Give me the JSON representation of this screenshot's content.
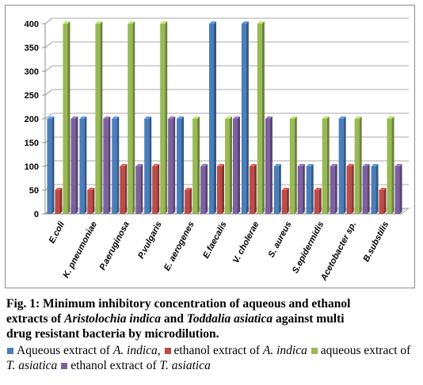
{
  "chart_data": {
    "type": "bar",
    "categories": [
      "E.coli",
      "K. pneumoniae",
      "P.aeruginosa",
      "P.vulgaris",
      "E. aerogenes",
      "E.faecalis",
      "V. cholerae",
      "S. aureus",
      "S.epidermidis",
      "Acetobacter sp.",
      "B.substilis"
    ],
    "series": [
      {
        "name": "Aqueous extract of A. indica",
        "color": "#4a7ebb",
        "values": [
          200,
          200,
          200,
          200,
          200,
          400,
          400,
          100,
          100,
          200,
          100
        ]
      },
      {
        "name": "ethanol extract of A. indica",
        "color": "#be4b48",
        "values": [
          50,
          50,
          100,
          100,
          50,
          100,
          100,
          50,
          50,
          100,
          50
        ]
      },
      {
        "name": "aqueous extract of T. asiatica",
        "color": "#98b954",
        "values": [
          400,
          400,
          400,
          400,
          200,
          200,
          400,
          200,
          200,
          200,
          200
        ]
      },
      {
        "name": "ethanol extract of T. asiatica",
        "color": "#7d60a0",
        "values": [
          200,
          200,
          100,
          200,
          100,
          200,
          200,
          100,
          100,
          100,
          100
        ]
      }
    ],
    "yticks": [
      "0",
      "50",
      "100",
      "150",
      "200",
      "250",
      "300",
      "350",
      "400"
    ],
    "ylim": [
      0,
      400
    ],
    "grid": true,
    "chart_style": "3d-clustered-column",
    "legend_position": "bottom"
  },
  "caption": {
    "line1_bold": "Fig. 1: Minimum inhibitory concentration of aqueous and ethanol",
    "line2_start": "extracts of ",
    "line2_species1": "Aristolochia indica",
    "line2_mid": " and ",
    "line2_species2": "Toddalia asiatica",
    "line2_end": " against multi",
    "line3": "drug resistant bacteria by microdilution."
  },
  "legend": [
    {
      "prefix": "Aqueous extract of ",
      "italic": "A. indica",
      "suffix": ",",
      "color": "#4a7ebb"
    },
    {
      "prefix": "ethanol extract of ",
      "italic": "A. indica",
      "suffix": "",
      "color": "#be4b48"
    },
    {
      "prefix": "aqueous extract of ",
      "italic": "T. asiatica",
      "suffix": "",
      "color": "#98b954"
    },
    {
      "prefix": "ethanol extract of ",
      "italic": "T. asiatica",
      "suffix": "",
      "color": "#7d60a0"
    }
  ]
}
